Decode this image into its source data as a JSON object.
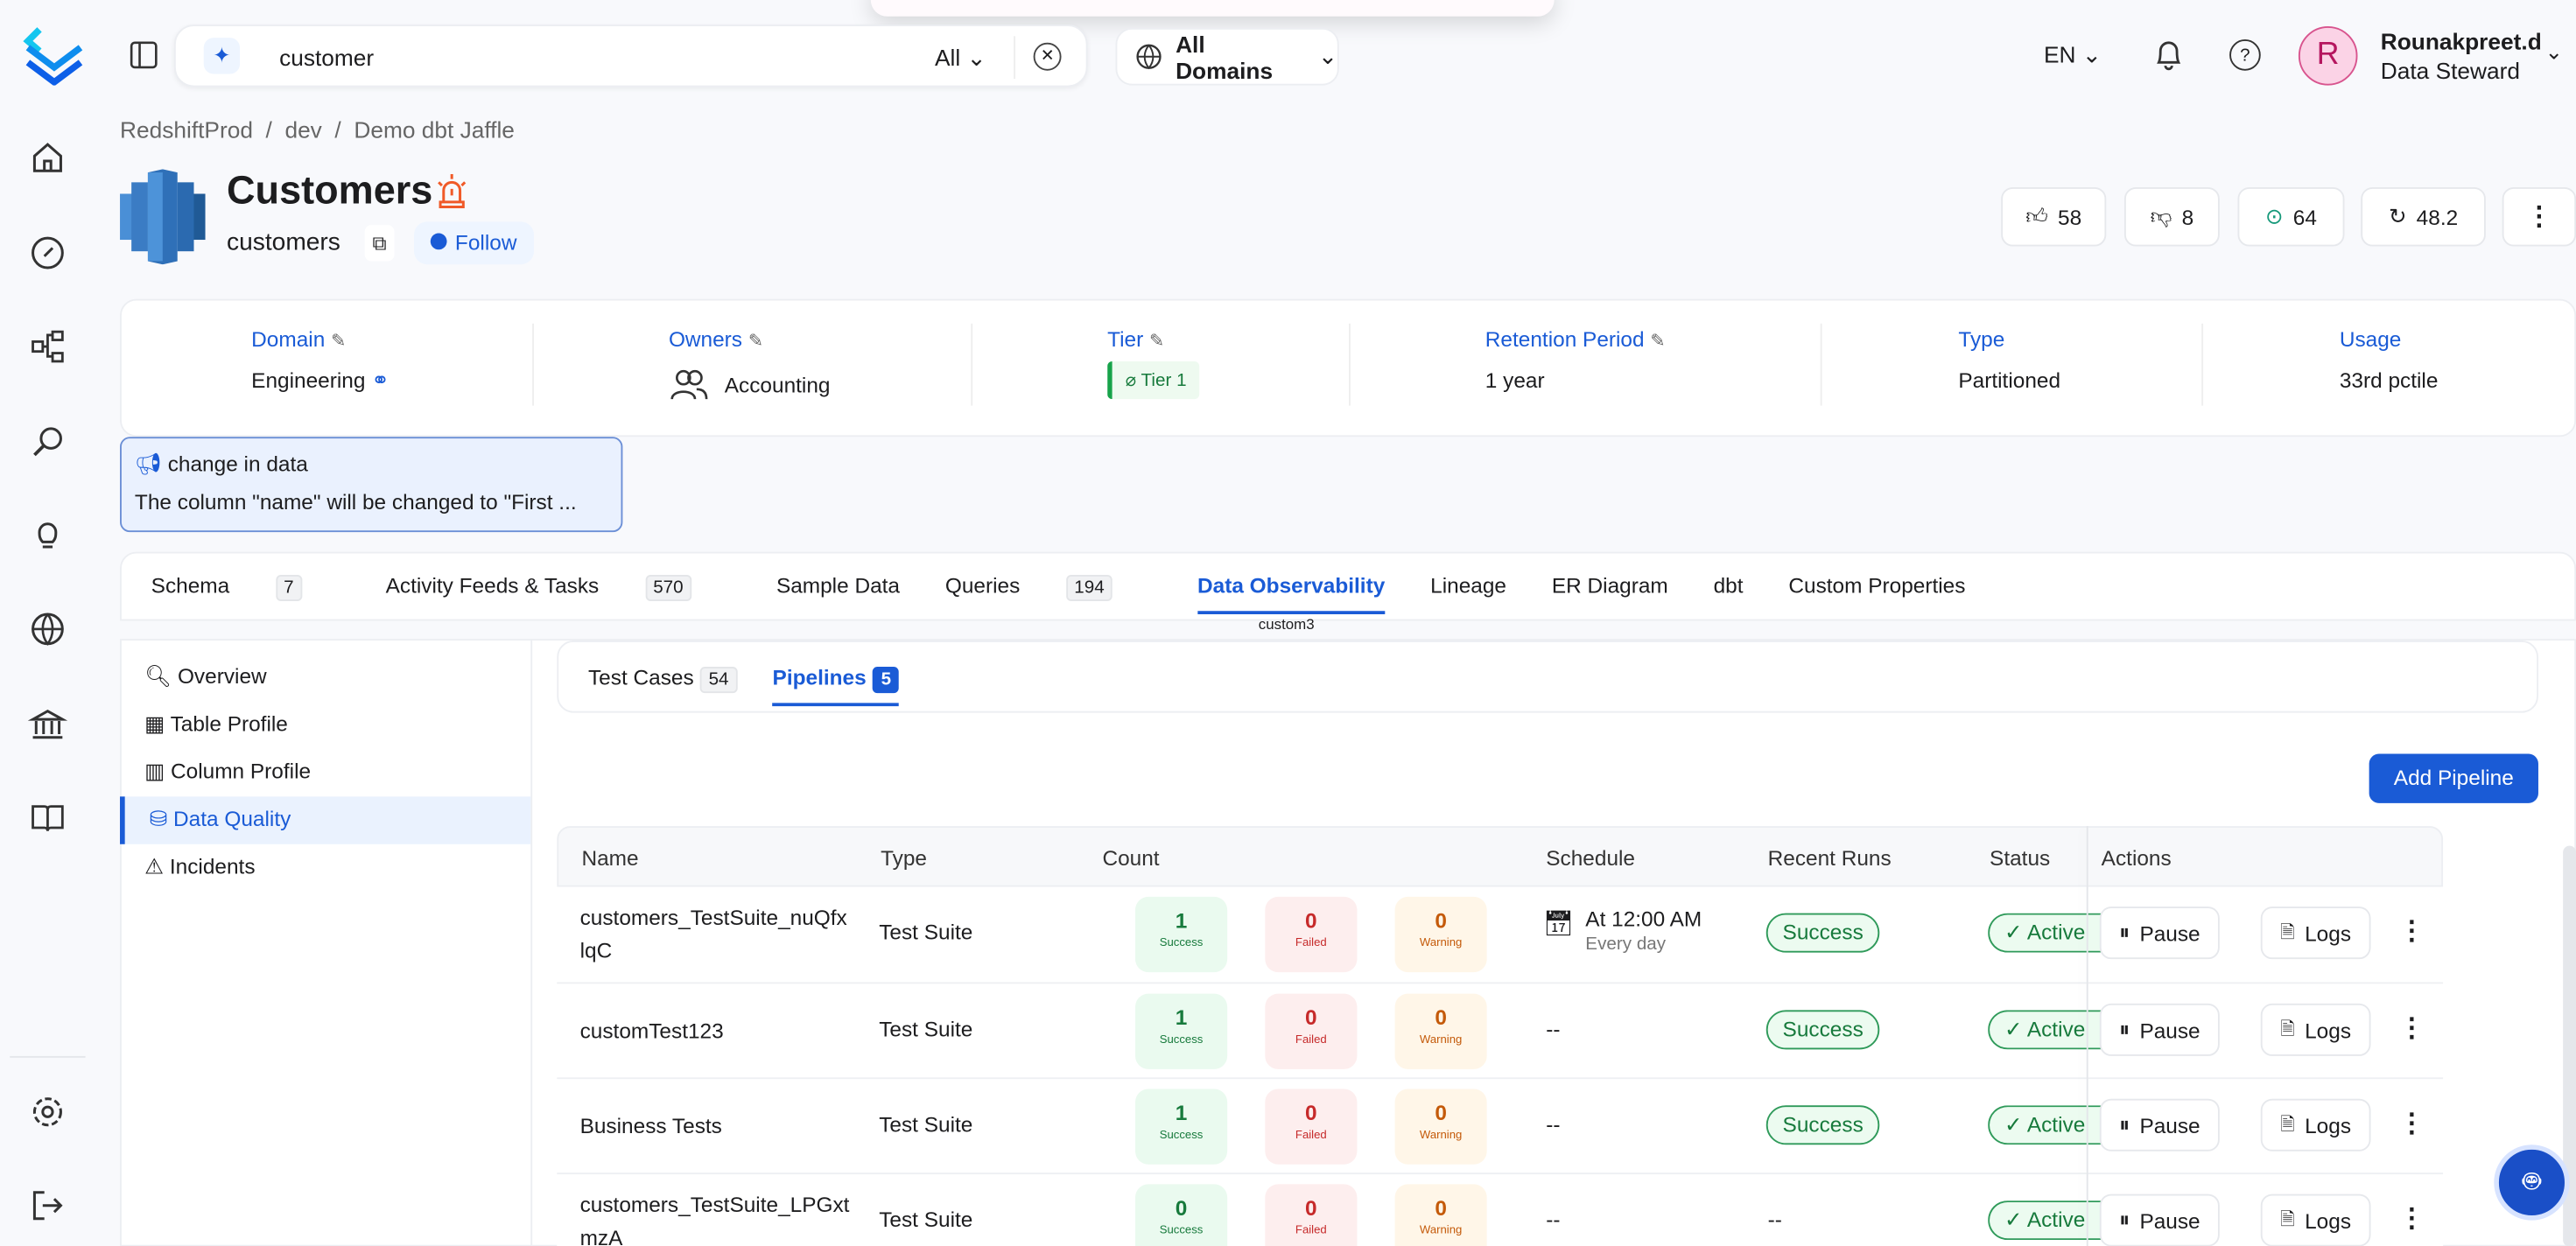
{
  "search": {
    "value": "customer",
    "filter": "All"
  },
  "domains": "All Domains",
  "header": {
    "lang": "EN",
    "user_initial": "R",
    "user_name": "Rounakpreet.d",
    "user_role": "Data Steward"
  },
  "breadcrumb": [
    "RedshiftProd",
    "dev",
    "Demo dbt Jaffle"
  ],
  "entity": {
    "title": "Customers",
    "name": "customers",
    "follow": "Follow"
  },
  "stats": {
    "likes": "58",
    "dislikes": "8",
    "views": "64",
    "score": "48.2"
  },
  "info": [
    {
      "label": "Domain",
      "value": "Engineering"
    },
    {
      "label": "Owners",
      "value": "Accounting"
    },
    {
      "label": "Tier",
      "value": "Tier 1"
    },
    {
      "label": "Retention Period",
      "value": "1 year"
    },
    {
      "label": "Type",
      "value": "Partitioned"
    },
    {
      "label": "Usage",
      "value": "33rd pctile"
    }
  ],
  "announcement": {
    "title": "change in data",
    "text": "The column \"name\" will be changed to \"First ..."
  },
  "tabs": [
    {
      "label": "Schema",
      "count": "7"
    },
    {
      "label": "Activity Feeds & Tasks",
      "count": "570"
    },
    {
      "label": "Sample Data"
    },
    {
      "label": "Queries",
      "count": "194"
    },
    {
      "label": "Data Observability",
      "active": true
    },
    {
      "label": "Lineage"
    },
    {
      "label": "ER Diagram"
    },
    {
      "label": "dbt"
    },
    {
      "label": "Custom Properties"
    }
  ],
  "tooltip": "custom3",
  "side_menu": [
    "Overview",
    "Table Profile",
    "Column Profile",
    "Data Quality",
    "Incidents"
  ],
  "subtabs": [
    {
      "label": "Test Cases",
      "count": "54"
    },
    {
      "label": "Pipelines",
      "count": "5"
    }
  ],
  "add_pipeline": "Add Pipeline",
  "table": {
    "columns": [
      "Name",
      "Type",
      "Count",
      "Schedule",
      "Recent Runs",
      "Status",
      "Actions"
    ],
    "count_labels": [
      "Success",
      "Failed",
      "Warning"
    ],
    "pause": "Pause",
    "logs": "Logs",
    "rows": [
      {
        "name": [
          "customers_TestSuite_nuQfx",
          "lqC"
        ],
        "type": "Test Suite",
        "success": "1",
        "failed": "0",
        "warning": "0",
        "schedule": "At 12:00 AM",
        "schedule_sub": "Every day",
        "recent": "Success",
        "status": "Active"
      },
      {
        "name": [
          "customTest123"
        ],
        "type": "Test Suite",
        "success": "1",
        "failed": "0",
        "warning": "0",
        "schedule": "--",
        "recent": "Success",
        "status": "Active"
      },
      {
        "name": [
          "Business Tests"
        ],
        "type": "Test Suite",
        "success": "1",
        "failed": "0",
        "warning": "0",
        "schedule": "--",
        "recent": "Success",
        "status": "Active"
      },
      {
        "name": [
          "customers_TestSuite_LPGxt",
          "mzA"
        ],
        "type": "Test Suite",
        "success": "0",
        "failed": "0",
        "warning": "0",
        "schedule": "--",
        "recent": "--",
        "status": "Active"
      }
    ]
  }
}
